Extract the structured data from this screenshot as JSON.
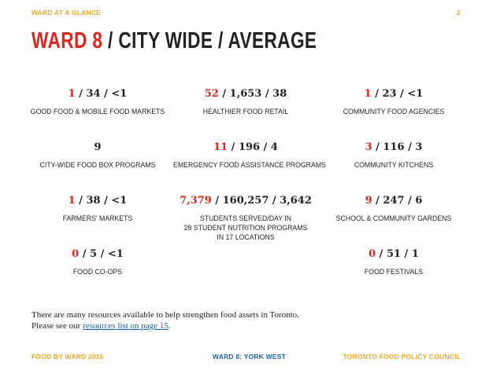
{
  "header": {
    "section": "WARD AT A GLANCE",
    "page_number": "2"
  },
  "title": {
    "ward": "WARD 8",
    "rest": " / CITY WIDE / AVERAGE"
  },
  "stats": [
    {
      "ward": "1",
      "rest": " / 34 / <1",
      "label": "GOOD FOOD & MOBILE FOOD MARKETS"
    },
    {
      "ward": "52",
      "rest": " / 1,653 / 38",
      "label": "HEALTHIER FOOD RETAIL"
    },
    {
      "ward": "1",
      "rest": " / 23 / <1",
      "label": "COMMUNITY FOOD AGENCIES"
    },
    {
      "ward": "",
      "rest": "9",
      "label": "CITY-WIDE FOOD BOX PROGRAMS"
    },
    {
      "ward": "11",
      "rest": " / 196 / 4",
      "label": "EMERGENCY FOOD ASSISTANCE PROGRAMS"
    },
    {
      "ward": "3",
      "rest": " / 116 / 3",
      "label": "COMMUNITY KITCHENS"
    },
    {
      "ward": "1",
      "rest": " / 38 / <1",
      "label": "FARMERS' MARKETS"
    },
    {
      "ward": "7,379",
      "rest": " / 160,257 / 3,642",
      "label_lines": [
        "STUDENTS SERVED/DAY IN",
        "28 STUDENT NUTRITION PROGRAMS",
        "IN 17 LOCATIONS"
      ]
    },
    {
      "ward": "9",
      "rest": " / 247 / 6",
      "label": "SCHOOL & COMMUNITY GARDENS"
    },
    {
      "ward": "0",
      "rest": " / 5 / <1",
      "label": "FOOD CO-OPS"
    },
    {
      "ward": "0",
      "rest": " / 51 / 1",
      "label": "FOOD FESTIVALS"
    }
  ],
  "body": {
    "line1": "There are many resources available to help strengthen food assets in Toronto.",
    "line2_prefix": "Please see our ",
    "link": "resources list on page 15",
    "line2_suffix": "."
  },
  "footer": {
    "left": "FOOD BY WARD 2016",
    "center": "WARD 8: YORK WEST",
    "right": "TORONTO FOOD POLICY COUNCIL"
  },
  "colors": {
    "accent_red": "#e0261c",
    "accent_orange": "#f5a623",
    "link_blue": "#1f5fa8"
  }
}
